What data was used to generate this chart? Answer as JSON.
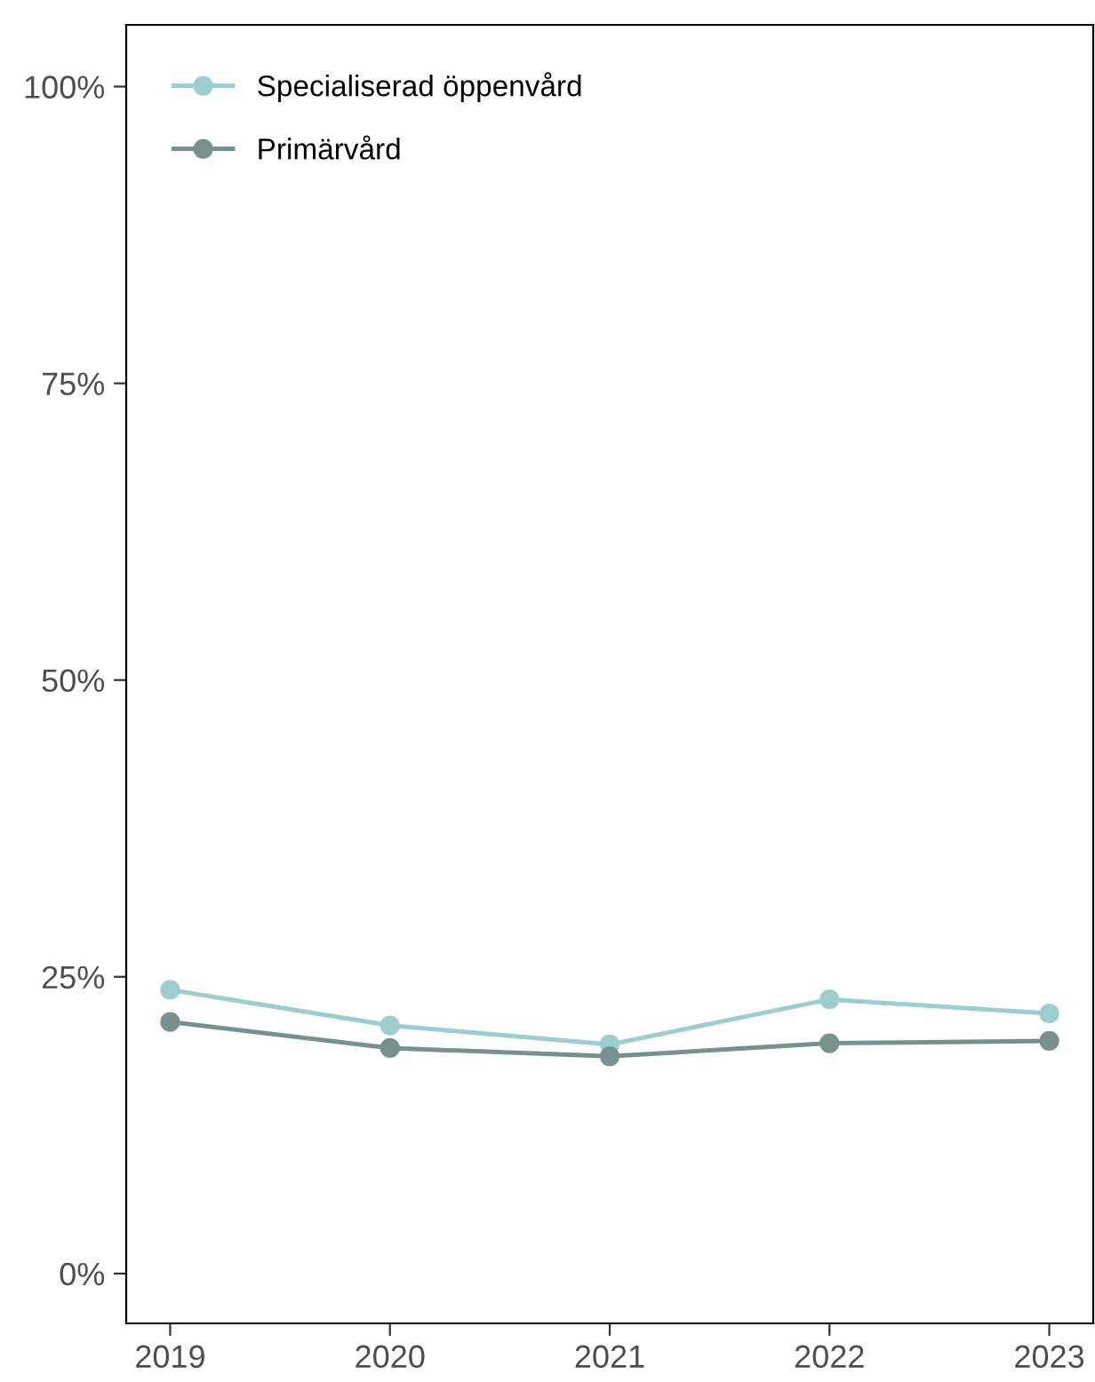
{
  "chart_data": {
    "type": "line",
    "x": [
      2019,
      2020,
      2021,
      2022,
      2023
    ],
    "series": [
      {
        "name": "Specialiserad öppenvård",
        "color": "#9ecdd1",
        "values": [
          23.9,
          20.9,
          19.3,
          23.1,
          21.9
        ]
      },
      {
        "name": "Primärvård",
        "color": "#76918f",
        "values": [
          21.2,
          19.0,
          18.3,
          19.4,
          19.6
        ]
      }
    ],
    "xlim": [
      2018.8,
      2023.2
    ],
    "xticks": [
      2019,
      2020,
      2021,
      2022,
      2023
    ],
    "ylim": [
      -4.2,
      105.2
    ],
    "yticks": [
      {
        "value": 0,
        "label": "0%"
      },
      {
        "value": 25,
        "label": "25%"
      },
      {
        "value": 50,
        "label": "50%"
      },
      {
        "value": 75,
        "label": "75%"
      },
      {
        "value": 100,
        "label": "100%"
      }
    ],
    "grid": false,
    "legend": "top left",
    "marker": "circle",
    "line_style": "solid"
  }
}
